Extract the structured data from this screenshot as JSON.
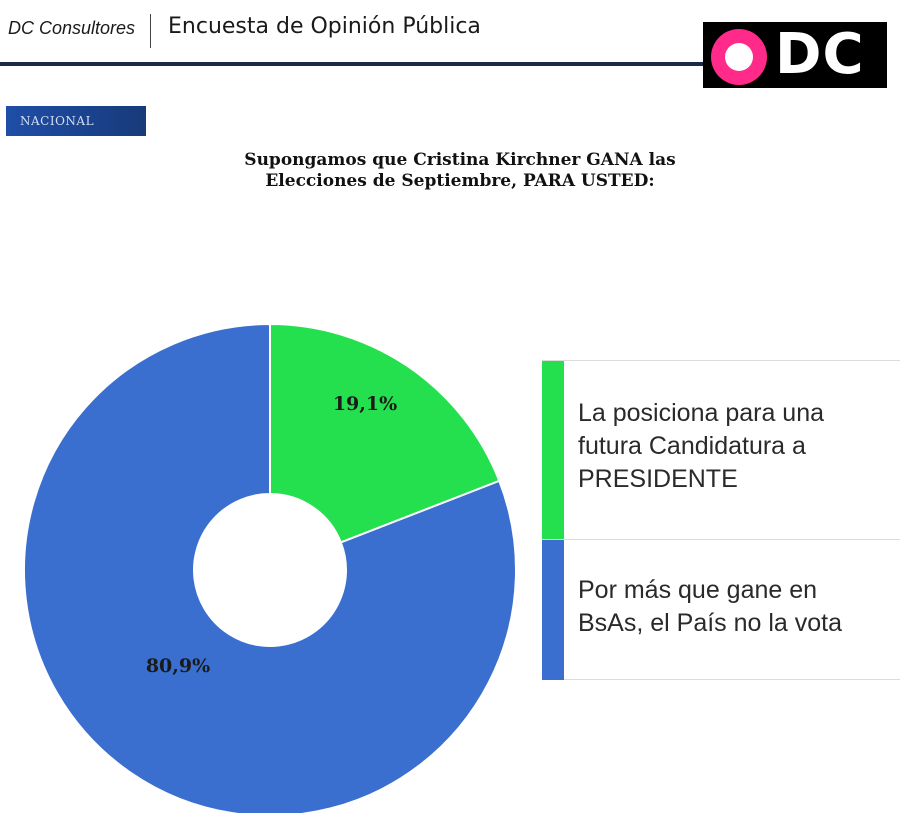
{
  "header": {
    "brand": "DC Consultores",
    "title": "Encuesta de Opinión Pública",
    "logo_text": "DC",
    "badge": "NACIONAL"
  },
  "chart_data": {
    "type": "pie",
    "title": "Supongamos que Cristina Kirchner GANA las Elecciones de Septiembre, PARA USTED:",
    "title_lines": [
      "Supongamos que Cristina Kirchner GANA las",
      "Elecciones de Septiembre, PARA USTED:"
    ],
    "donut": true,
    "slices": [
      {
        "label": "La posiciona para una futura Candidatura a PRESIDENTE",
        "value": 19.1,
        "display": "19,1%",
        "color": "#25e04e"
      },
      {
        "label": "Por más que gane en BsAs, el País no la vota",
        "value": 80.9,
        "display": "80,9%",
        "color": "#3a6fcf"
      }
    ],
    "legend": {
      "position": "right",
      "items": [
        {
          "lines": [
            "La posiciona para una",
            "futura Candidatura a",
            "PRESIDENTE"
          ],
          "color": "#25e04e"
        },
        {
          "lines": [
            "Por más que gane en",
            "BsAs, el País no la vota"
          ],
          "color": "#3a6fcf"
        }
      ]
    }
  }
}
